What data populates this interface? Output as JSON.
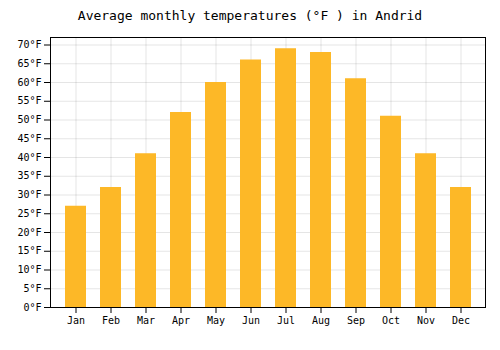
{
  "chart_data": {
    "type": "bar",
    "title": "Average monthly temperatures (°F ) in Andrid",
    "categories": [
      "Jan",
      "Feb",
      "Mar",
      "Apr",
      "May",
      "Jun",
      "Jul",
      "Aug",
      "Sep",
      "Oct",
      "Nov",
      "Dec"
    ],
    "values": [
      27,
      32,
      41,
      52,
      60,
      66,
      69,
      68,
      61,
      51,
      41,
      32
    ],
    "color": "#FDB827",
    "ylim": [
      0,
      72
    ],
    "yticks": [
      {
        "value": 0,
        "label": "0°F"
      },
      {
        "value": 5,
        "label": "5°F"
      },
      {
        "value": 10,
        "label": "10°F"
      },
      {
        "value": 15,
        "label": "15°F"
      },
      {
        "value": 20,
        "label": "20°F"
      },
      {
        "value": 25,
        "label": "25°F"
      },
      {
        "value": 30,
        "label": "30°F"
      },
      {
        "value": 35,
        "label": "35°F"
      },
      {
        "value": 40,
        "label": "40°F"
      },
      {
        "value": 45,
        "label": "45°F"
      },
      {
        "value": 50,
        "label": "50°F"
      },
      {
        "value": 55,
        "label": "55°F"
      },
      {
        "value": 60,
        "label": "60°F"
      },
      {
        "value": 65,
        "label": "65°F"
      },
      {
        "value": 70,
        "label": "70°F"
      }
    ],
    "grid": true
  }
}
